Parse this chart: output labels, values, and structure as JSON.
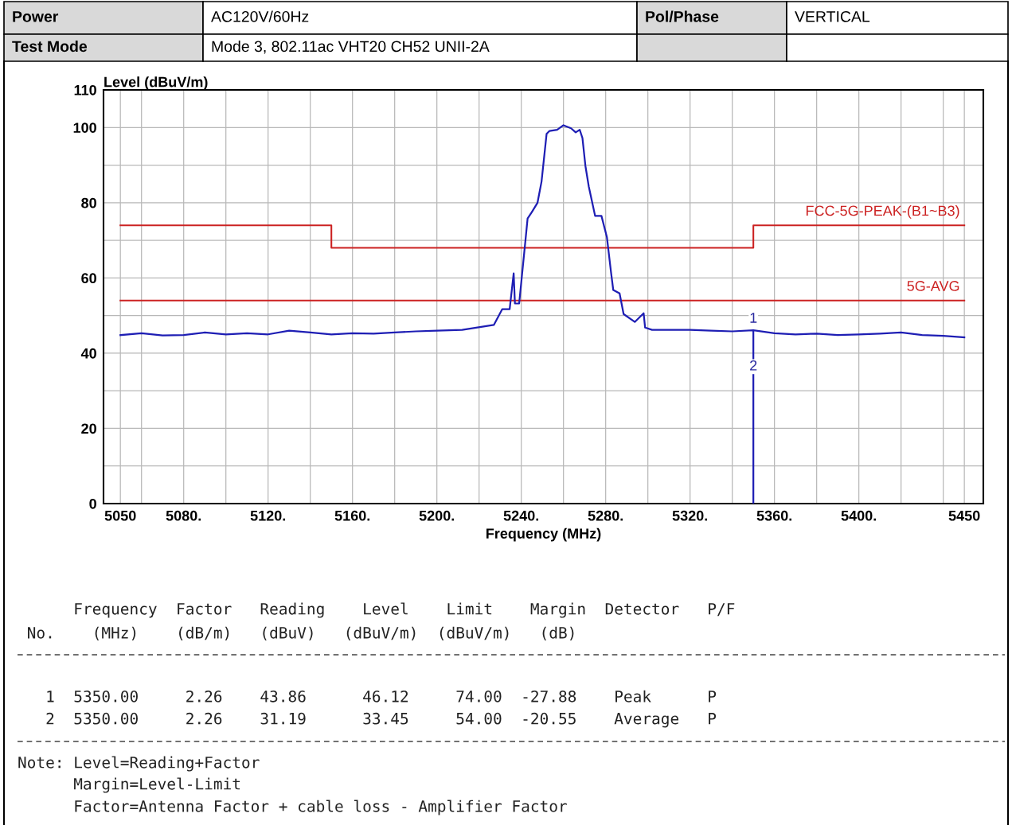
{
  "chart_data": {
    "type": "line",
    "xlabel": "Frequency (MHz)",
    "ylabel": "Level (dBuV/m)",
    "xlim": [
      5042,
      5459
    ],
    "ylim": [
      0,
      110
    ],
    "xticks": [
      5050,
      {
        "value": 5060,
        "label": null
      },
      {
        "value": 5080,
        "label": "5080."
      },
      {
        "value": 5100,
        "label": null
      },
      {
        "value": 5120,
        "label": "5120."
      },
      {
        "value": 5140,
        "label": null
      },
      {
        "value": 5160,
        "label": "5160."
      },
      {
        "value": 5180,
        "label": null
      },
      {
        "value": 5200,
        "label": "5200."
      },
      {
        "value": 5220,
        "label": null
      },
      {
        "value": 5240,
        "label": "5240."
      },
      {
        "value": 5260,
        "label": null
      },
      {
        "value": 5280,
        "label": "5280."
      },
      {
        "value": 5300,
        "label": null
      },
      {
        "value": 5320,
        "label": "5320."
      },
      {
        "value": 5340,
        "label": null
      },
      {
        "value": 5360,
        "label": "5360."
      },
      {
        "value": 5380,
        "label": null
      },
      {
        "value": 5400,
        "label": "5400."
      },
      {
        "value": 5420,
        "label": null
      },
      {
        "value": 5440,
        "label": null
      },
      5450
    ],
    "yticks": [
      0,
      {
        "value": 10,
        "label": null
      },
      20,
      {
        "value": 30,
        "label": null
      },
      40,
      {
        "value": 50,
        "label": null
      },
      60,
      {
        "value": 70,
        "label": null
      },
      80,
      {
        "value": 90,
        "label": null
      },
      100,
      110
    ],
    "grid": true,
    "series": [
      {
        "color": "#1e1eb4",
        "x": [
          5050,
          5060,
          5070,
          5080,
          5090,
          5100,
          5110,
          5120,
          5130,
          5140,
          5150,
          5160,
          5170,
          5180,
          5190,
          5200,
          5212,
          5227,
          5231,
          5234.5,
          5236.4,
          5237,
          5239,
          5242,
          5243,
          5245,
          5247.7,
          5249.6,
          5252,
          5253.4,
          5257,
          5260,
          5263.6,
          5265.8,
          5267.7,
          5269,
          5270.4,
          5272,
          5275,
          5278,
          5280.6,
          5282.5,
          5283.6,
          5286.6,
          5288.5,
          5293.8,
          5298,
          5298.7,
          5302,
          5310,
          5320,
          5330,
          5340,
          5350,
          5350,
          5350,
          5360,
          5370,
          5380,
          5390,
          5400,
          5410,
          5420,
          5430,
          5440,
          5450
        ],
        "values": [
          44.8,
          45.3,
          44.7,
          44.8,
          45.5,
          45.0,
          45.3,
          45.0,
          46.0,
          45.5,
          45.0,
          45.3,
          45.2,
          45.5,
          45.8,
          46.0,
          46.2,
          47.5,
          51.7,
          51.7,
          61.2,
          53.2,
          53.2,
          70.1,
          75.8,
          77.5,
          80.0,
          85.6,
          98.3,
          99.1,
          99.4,
          100.6,
          99.8,
          98.7,
          99.4,
          97.2,
          89.8,
          84.3,
          76.5,
          76.5,
          70.8,
          61.7,
          56.8,
          55.9,
          50.4,
          48.3,
          50.6,
          46.8,
          46.2,
          46.2,
          46.2,
          46.0,
          45.8,
          46.1,
          0,
          46.1,
          45.3,
          45.0,
          45.2,
          44.8,
          45.0,
          45.2,
          45.5,
          44.8,
          44.6,
          44.2
        ]
      },
      {
        "name": "FCC-5G-PEAK-(B1~B3)",
        "color": "#cc2222",
        "x": [
          5050,
          5150,
          5150,
          5350,
          5350,
          5450
        ],
        "values": [
          74,
          74,
          68,
          68,
          74,
          74
        ]
      },
      {
        "name": "5G-AVG",
        "color": "#cc2222",
        "x": [
          5050,
          5450
        ],
        "values": [
          54,
          54
        ]
      }
    ],
    "annotations": [
      "Power",
      "AC120V/60Hz",
      "Pol/Phase",
      "VERTICAL",
      "Test Mode",
      "Mode 3, 802.11ac VHT20 CH52 UNII-2A",
      {
        "text": "1",
        "x": 5350,
        "y": 46.12
      },
      {
        "text": "2",
        "x": 5350,
        "y": 33.45
      },
      "      Frequency  Factor   Reading    Level    Limit    Margin  Detector   P/F",
      " No.    (MHz)    (dB/m)   (dBuV)   (dBuV/m)  (dBuV/m)   (dB)",
      "   1  5350.00     2.26    43.86      46.12     74.00  -27.88    Peak      P",
      "   2  5350.00     2.26    31.19      33.45     54.00  -20.55    Average   P",
      "Note: Level=Reading+Factor",
      "      Margin=Level-Limit",
      "      Factor=Antenna Factor + cable loss - Amplifier Factor"
    ]
  }
}
